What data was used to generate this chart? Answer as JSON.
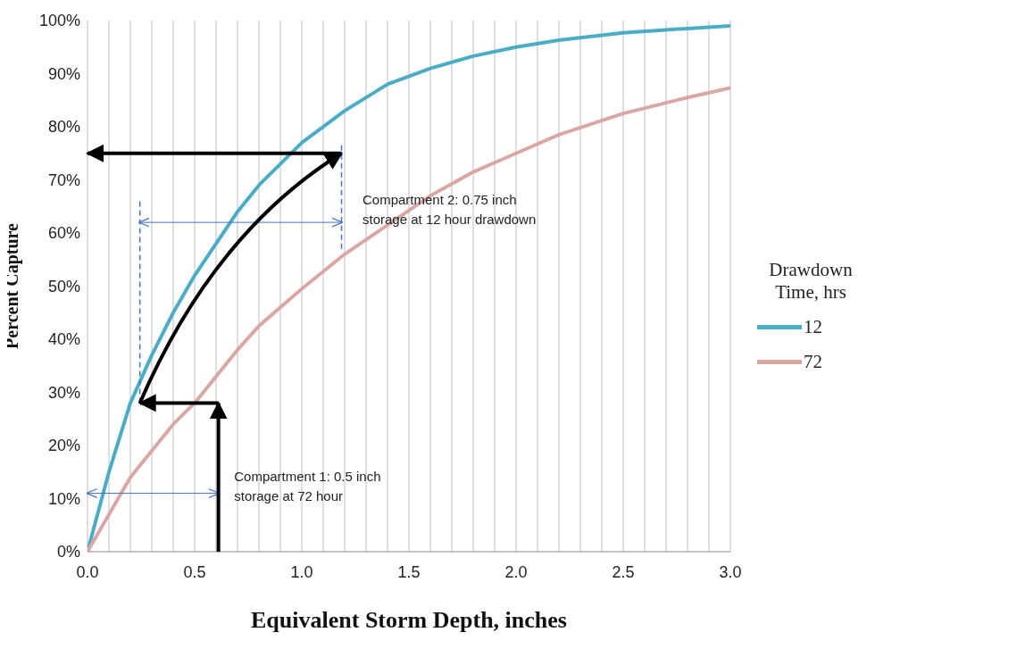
{
  "chart_data": {
    "type": "line",
    "xlabel": "Equivalent Storm Depth, inches",
    "ylabel": "Percent Capture",
    "legend_title": "Drawdown Time, hrs",
    "legend": "right",
    "grid": "x",
    "marker": "none",
    "line_style": "solid",
    "x": [
      0,
      0.1,
      0.2,
      0.3,
      0.4,
      0.5,
      0.6,
      0.7,
      0.8,
      0.9,
      1.0,
      1.2,
      1.4,
      1.6,
      1.8,
      2.0,
      2.2,
      2.5,
      2.8,
      3.0
    ],
    "series": [
      {
        "name": "12",
        "color": "#4bacc6",
        "values": [
          0,
          15,
          28,
          37,
          45,
          52,
          58,
          64,
          69,
          73,
          77,
          83,
          88,
          91,
          93.3,
          95,
          96.3,
          97.7,
          98.5,
          99
        ]
      },
      {
        "name": "72",
        "color": "#d9a8a5",
        "values": [
          0,
          7,
          14,
          19,
          24,
          28,
          33,
          38,
          42.5,
          46,
          49.5,
          56,
          61.5,
          67,
          71.5,
          75,
          78.5,
          82.5,
          85.5,
          87.3
        ]
      }
    ],
    "xlim": [
      0,
      3
    ],
    "xticks": [
      {
        "value": 0,
        "label": "0.0"
      },
      {
        "value": 0.1,
        "label": null
      },
      {
        "value": 0.2,
        "label": null
      },
      {
        "value": 0.3,
        "label": null
      },
      {
        "value": 0.4,
        "label": null
      },
      0.5,
      {
        "value": 0.6,
        "label": null
      },
      {
        "value": 0.7,
        "label": null
      },
      {
        "value": 0.8,
        "label": null
      },
      {
        "value": 0.9,
        "label": null
      },
      {
        "value": 1,
        "label": "1.0"
      },
      {
        "value": 1.1,
        "label": null
      },
      {
        "value": 1.2,
        "label": null
      },
      {
        "value": 1.3,
        "label": null
      },
      {
        "value": 1.4,
        "label": null
      },
      1.5,
      {
        "value": 1.6,
        "label": null
      },
      {
        "value": 1.7,
        "label": null
      },
      {
        "value": 1.8,
        "label": null
      },
      {
        "value": 1.9,
        "label": null
      },
      {
        "value": 2,
        "label": "2.0"
      },
      {
        "value": 2.1,
        "label": null
      },
      {
        "value": 2.2,
        "label": null
      },
      {
        "value": 2.3,
        "label": null
      },
      {
        "value": 2.4,
        "label": null
      },
      2.5,
      {
        "value": 2.6,
        "label": null
      },
      {
        "value": 2.7,
        "label": null
      },
      {
        "value": 2.8,
        "label": null
      },
      {
        "value": 2.9,
        "label": null
      },
      {
        "value": 3,
        "label": "3.0"
      }
    ],
    "ylim": [
      0,
      100
    ],
    "yticks": [
      {
        "value": 0,
        "label": "0%"
      },
      {
        "value": 10,
        "label": "10%"
      },
      {
        "value": 20,
        "label": "20%"
      },
      {
        "value": 30,
        "label": "30%"
      },
      {
        "value": 40,
        "label": "40%"
      },
      {
        "value": 50,
        "label": "50%"
      },
      {
        "value": 60,
        "label": "60%"
      },
      {
        "value": 70,
        "label": "70%"
      },
      {
        "value": 80,
        "label": "80%"
      },
      {
        "value": 90,
        "label": "90%"
      },
      {
        "value": 100,
        "label": "100%"
      }
    ],
    "annotations": [
      "Compartment 2: 0.75 inch storage at 12 hour drawdown",
      "Compartment 1: 0.5 inch storage at 72 hour"
    ]
  }
}
